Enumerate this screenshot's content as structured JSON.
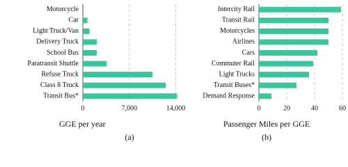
{
  "chart_data": [
    {
      "type": "bar",
      "orientation": "horizontal",
      "color": "#3cc49c",
      "grid": true,
      "categories": [
        "Motorcycle",
        "Car",
        "Light Truck/Van",
        "Delivery Truck",
        "School Bus",
        "Paratransit Shuttle",
        "Refuse Truck",
        "Class 8 Truck",
        "Transit Bus*"
      ],
      "values": [
        100,
        700,
        1000,
        2100,
        2100,
        3600,
        10500,
        12500,
        14200
      ],
      "xlim": [
        0,
        15000
      ],
      "xticks": [
        0,
        {
          "value": 7000,
          "label": "7,000"
        },
        {
          "value": 14000,
          "label": "14,000"
        }
      ],
      "xlabel": "GGE per year",
      "caption": "(a)"
    },
    {
      "type": "bar",
      "orientation": "horizontal",
      "color": "#3cc49c",
      "grid": true,
      "categories": [
        "Intercity Rail",
        "Transit Rail",
        "Motorcycles",
        "Airlines",
        "Cars",
        "Commuter Rail",
        "Light Trucks",
        "Transit Buses*",
        "Demand Response"
      ],
      "values": [
        59,
        50,
        50,
        50,
        42,
        39,
        36,
        27,
        9
      ],
      "xlim": [
        0,
        62
      ],
      "xticks": [
        0,
        20,
        40,
        60
      ],
      "xlabel": "Passenger Miles per GGE",
      "caption": "(b)"
    }
  ]
}
